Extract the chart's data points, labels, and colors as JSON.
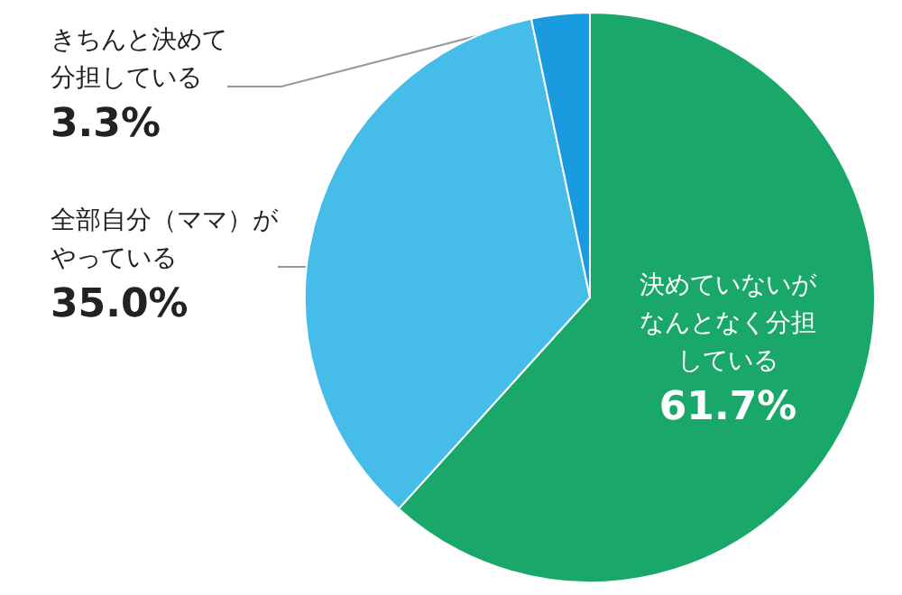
{
  "chart_data": {
    "type": "pie",
    "categories": [
      "決めていないがなんとなく分担している",
      "全部自分（ママ）がやっている",
      "きちんと決めて分担している"
    ],
    "values": [
      61.7,
      35.0,
      3.3
    ],
    "value_labels": [
      "61.7%",
      "35.0%",
      "3.3%"
    ],
    "colors": [
      "#1aa86a",
      "#45bde8",
      "#1a9be0"
    ],
    "legend": false
  }
}
